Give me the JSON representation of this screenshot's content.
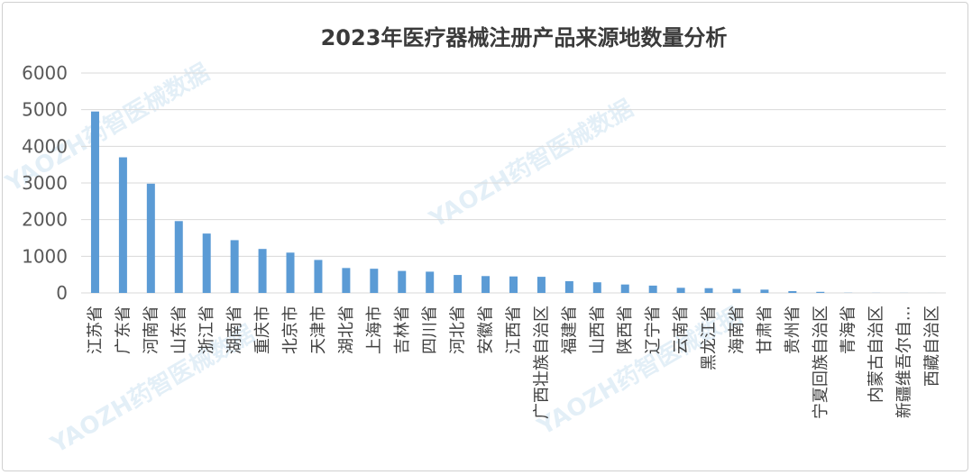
{
  "chart_data": {
    "type": "bar",
    "title": "2023年医疗器械注册产品来源地数量分析",
    "xlabel": "",
    "ylabel": "",
    "ylim": [
      0,
      6000
    ],
    "yticks": [
      0,
      1000,
      2000,
      3000,
      4000,
      5000,
      6000
    ],
    "grid": true,
    "legend": "none",
    "bar_color": "#5b9bd5",
    "categories": [
      "江苏省",
      "广东省",
      "河南省",
      "山东省",
      "浙江省",
      "湖南省",
      "重庆市",
      "北京市",
      "天津市",
      "湖北省",
      "上海市",
      "吉林省",
      "四川省",
      "河北省",
      "安徽省",
      "江西省",
      "广西壮族自治区",
      "福建省",
      "山西省",
      "陕西省",
      "辽宁省",
      "云南省",
      "黑龙江省",
      "海南省",
      "甘肃省",
      "贵州省",
      "宁夏回族自治区",
      "青海省",
      "内蒙古自治区",
      "新疆维吾尔自...",
      "西藏自治区"
    ],
    "values": [
      4950,
      3700,
      2980,
      1960,
      1620,
      1440,
      1200,
      1100,
      900,
      680,
      660,
      600,
      580,
      490,
      460,
      450,
      440,
      320,
      290,
      230,
      200,
      140,
      130,
      110,
      90,
      50,
      30,
      5,
      3,
      2,
      1
    ]
  },
  "watermark": {
    "text": "YAOZH药智医械数据"
  }
}
